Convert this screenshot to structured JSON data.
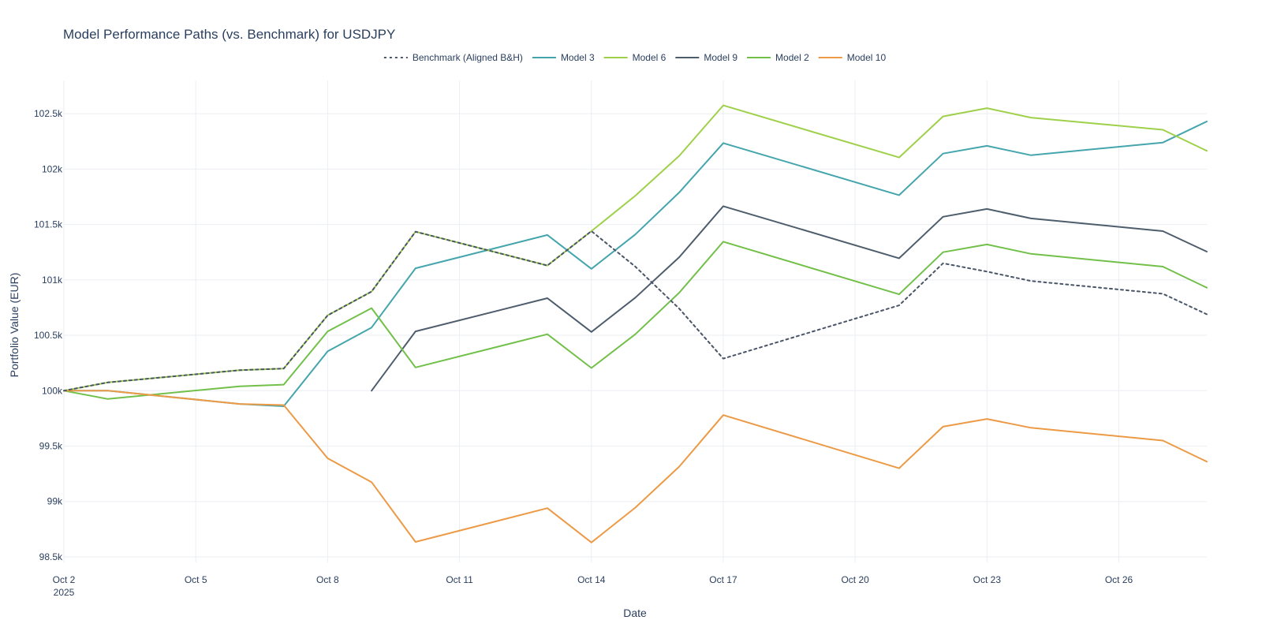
{
  "chart_data": {
    "type": "line",
    "title": "Model Performance Paths (vs. Benchmark) for USDJPY",
    "xlabel": "Date",
    "ylabel": "Portfolio Value (EUR)",
    "x_axis": {
      "type": "date",
      "range": [
        "2025-10-02",
        "2025-10-28"
      ],
      "tick_labels": [
        {
          "date": "2025-10-02",
          "label": "Oct 2",
          "sublabel": "2025"
        },
        {
          "date": "2025-10-05",
          "label": "Oct 5"
        },
        {
          "date": "2025-10-08",
          "label": "Oct 8"
        },
        {
          "date": "2025-10-11",
          "label": "Oct 11"
        },
        {
          "date": "2025-10-14",
          "label": "Oct 14"
        },
        {
          "date": "2025-10-17",
          "label": "Oct 17"
        },
        {
          "date": "2025-10-20",
          "label": "Oct 20"
        },
        {
          "date": "2025-10-23",
          "label": "Oct 23"
        },
        {
          "date": "2025-10-26",
          "label": "Oct 26"
        }
      ]
    },
    "y_axis": {
      "range": [
        98450,
        102800
      ],
      "ticks": [
        98500,
        99000,
        99500,
        100000,
        100500,
        101000,
        101500,
        102000,
        102500
      ],
      "tick_labels": [
        "98.5k",
        "99k",
        "99.5k",
        "100k",
        "100.5k",
        "101k",
        "101.5k",
        "102k",
        "102.5k"
      ]
    },
    "grid": true,
    "legend_position": "top-center",
    "series": [
      {
        "name": "Benchmark (Aligned B&H)",
        "color": "#4a5568",
        "dash": "dot",
        "x": [
          "2025-10-02",
          "2025-10-03",
          "2025-10-06",
          "2025-10-07",
          "2025-10-08",
          "2025-10-09",
          "2025-10-10",
          "2025-10-13",
          "2025-10-14",
          "2025-10-15",
          "2025-10-16",
          "2025-10-17",
          "2025-10-21",
          "2025-10-22",
          "2025-10-23",
          "2025-10-24",
          "2025-10-27",
          "2025-10-28"
        ],
        "y": [
          100000,
          100075,
          100185,
          100200,
          100680,
          100895,
          101435,
          101130,
          101440,
          101120,
          100740,
          100290,
          100770,
          101150,
          101075,
          100990,
          100875,
          100690
        ]
      },
      {
        "name": "Model 3",
        "color": "#45a5ad",
        "dash": "solid",
        "x": [
          "2025-10-02",
          "2025-10-03",
          "2025-10-06",
          "2025-10-07",
          "2025-10-08",
          "2025-10-09",
          "2025-10-10",
          "2025-10-13",
          "2025-10-14",
          "2025-10-15",
          "2025-10-16",
          "2025-10-17",
          "2025-10-21",
          "2025-10-22",
          "2025-10-23",
          "2025-10-24",
          "2025-10-27",
          "2025-10-28"
        ],
        "y": [
          100000,
          100000,
          99880,
          99860,
          100355,
          100570,
          101105,
          101405,
          101100,
          101410,
          101790,
          102235,
          101765,
          102140,
          102210,
          102125,
          102240,
          102430
        ]
      },
      {
        "name": "Model 6",
        "color": "#9fd04a",
        "dash": "solid",
        "x": [
          "2025-10-02",
          "2025-10-03",
          "2025-10-06",
          "2025-10-07",
          "2025-10-08",
          "2025-10-09",
          "2025-10-10",
          "2025-10-13",
          "2025-10-14",
          "2025-10-15",
          "2025-10-16",
          "2025-10-17",
          "2025-10-21",
          "2025-10-22",
          "2025-10-23",
          "2025-10-24",
          "2025-10-27",
          "2025-10-28"
        ],
        "y": [
          100000,
          100075,
          100185,
          100200,
          100680,
          100895,
          101435,
          101130,
          101440,
          101760,
          102120,
          102575,
          102105,
          102475,
          102550,
          102465,
          102355,
          102165
        ]
      },
      {
        "name": "Model 9",
        "color": "#4e5d6c",
        "dash": "solid",
        "x": [
          "2025-10-09",
          "2025-10-10",
          "2025-10-13",
          "2025-10-14",
          "2025-10-15",
          "2025-10-16",
          "2025-10-17",
          "2025-10-21",
          "2025-10-22",
          "2025-10-23",
          "2025-10-24",
          "2025-10-27",
          "2025-10-28"
        ],
        "y": [
          100000,
          100535,
          100835,
          100530,
          100840,
          101205,
          101665,
          101195,
          101570,
          101640,
          101555,
          101440,
          101255
        ]
      },
      {
        "name": "Model 2",
        "color": "#72c04a",
        "dash": "solid",
        "x": [
          "2025-10-02",
          "2025-10-03",
          "2025-10-06",
          "2025-10-07",
          "2025-10-08",
          "2025-10-09",
          "2025-10-10",
          "2025-10-13",
          "2025-10-14",
          "2025-10-15",
          "2025-10-16",
          "2025-10-17",
          "2025-10-21",
          "2025-10-22",
          "2025-10-23",
          "2025-10-24",
          "2025-10-27",
          "2025-10-28"
        ],
        "y": [
          100000,
          99925,
          100040,
          100055,
          100535,
          100745,
          100210,
          100510,
          100205,
          100510,
          100885,
          101345,
          100870,
          101250,
          101320,
          101235,
          101120,
          100930
        ]
      },
      {
        "name": "Model 10",
        "color": "#ec9a45",
        "dash": "solid",
        "x": [
          "2025-10-02",
          "2025-10-03",
          "2025-10-06",
          "2025-10-07",
          "2025-10-08",
          "2025-10-09",
          "2025-10-10",
          "2025-10-13",
          "2025-10-14",
          "2025-10-15",
          "2025-10-16",
          "2025-10-17",
          "2025-10-21",
          "2025-10-22",
          "2025-10-23",
          "2025-10-24",
          "2025-10-27",
          "2025-10-28"
        ],
        "y": [
          100000,
          100000,
          99880,
          99870,
          99390,
          99175,
          98635,
          98940,
          98630,
          98945,
          99315,
          99780,
          99300,
          99675,
          99745,
          99665,
          99550,
          99360
        ]
      }
    ]
  }
}
